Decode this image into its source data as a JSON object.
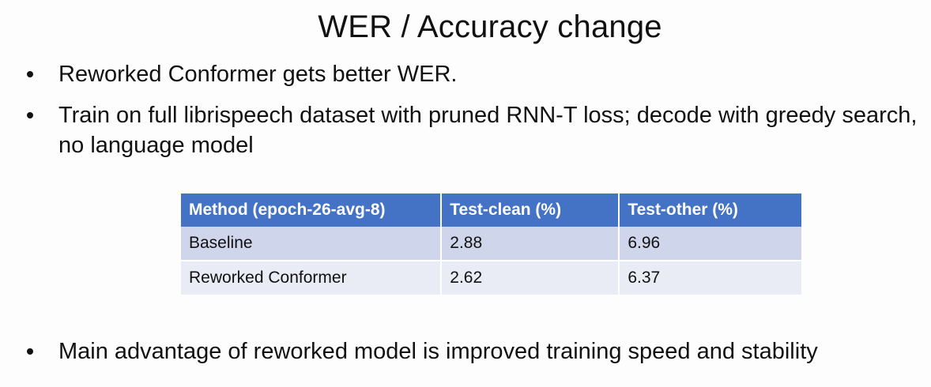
{
  "title": "WER / Accuracy change",
  "bullets": [
    "Reworked Conformer gets better WER.",
    "Train on full librispeech dataset with pruned RNN-T loss; decode with greedy search, no language model",
    "Main advantage of reworked model is improved training speed and stability"
  ],
  "table": {
    "headers": [
      "Method (epoch-26-avg-8)",
      "Test-clean (%)",
      "Test-other (%)"
    ],
    "rows": [
      [
        "Baseline",
        "2.88",
        "6.96"
      ],
      [
        "Reworked Conformer",
        "2.62",
        "6.37"
      ]
    ]
  },
  "colors": {
    "header_bg": "#4472c4",
    "row_odd_bg": "#cfd5ea",
    "row_even_bg": "#e9ebf5"
  }
}
